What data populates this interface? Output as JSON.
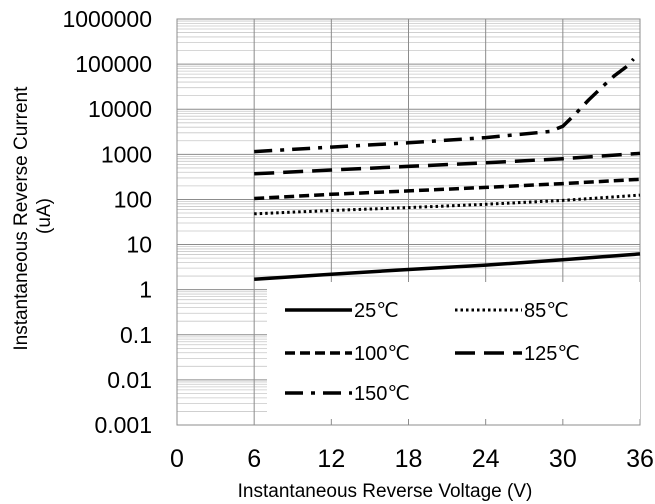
{
  "chart_data": {
    "type": "line",
    "title": "",
    "xlabel": "Instantaneous Reverse Voltage (V)",
    "ylabel": [
      "Instantaneous Reverse Current",
      "(uA)"
    ],
    "xlim": [
      0,
      36
    ],
    "ylim": [
      0.001,
      1000000
    ],
    "yscale": "log",
    "grid": true,
    "legend_position": "bottom-right",
    "x_ticks": [
      0,
      6,
      12,
      18,
      24,
      30,
      36
    ],
    "y_ticks": [
      "0.001",
      "0.01",
      "0.1",
      "1",
      "10",
      "100",
      "1000",
      "10000",
      "100000",
      "1000000"
    ],
    "series": [
      {
        "name": "25℃",
        "style": "solid",
        "x": [
          6,
          12,
          18,
          24,
          30,
          36
        ],
        "y": [
          1.7,
          2.2,
          2.8,
          3.5,
          4.6,
          6.2
        ]
      },
      {
        "name": "85℃",
        "style": "dotted",
        "x": [
          6,
          12,
          18,
          24,
          30,
          36
        ],
        "y": [
          48,
          57,
          66,
          78,
          95,
          125
        ]
      },
      {
        "name": "100℃",
        "style": "short-dash",
        "x": [
          6,
          12,
          18,
          24,
          30,
          36
        ],
        "y": [
          105,
          130,
          155,
          185,
          225,
          280
        ]
      },
      {
        "name": "125℃",
        "style": "long-dash",
        "x": [
          6,
          12,
          18,
          24,
          30,
          36
        ],
        "y": [
          370,
          450,
          540,
          650,
          800,
          1050
        ]
      },
      {
        "name": "150℃",
        "style": "dash-dot",
        "x": [
          6,
          12,
          18,
          24,
          29,
          30,
          31,
          32,
          33,
          34,
          35,
          35.5
        ],
        "y": [
          1150,
          1450,
          1800,
          2350,
          3200,
          4200,
          8000,
          16000,
          30000,
          55000,
          90000,
          130000
        ]
      }
    ]
  }
}
